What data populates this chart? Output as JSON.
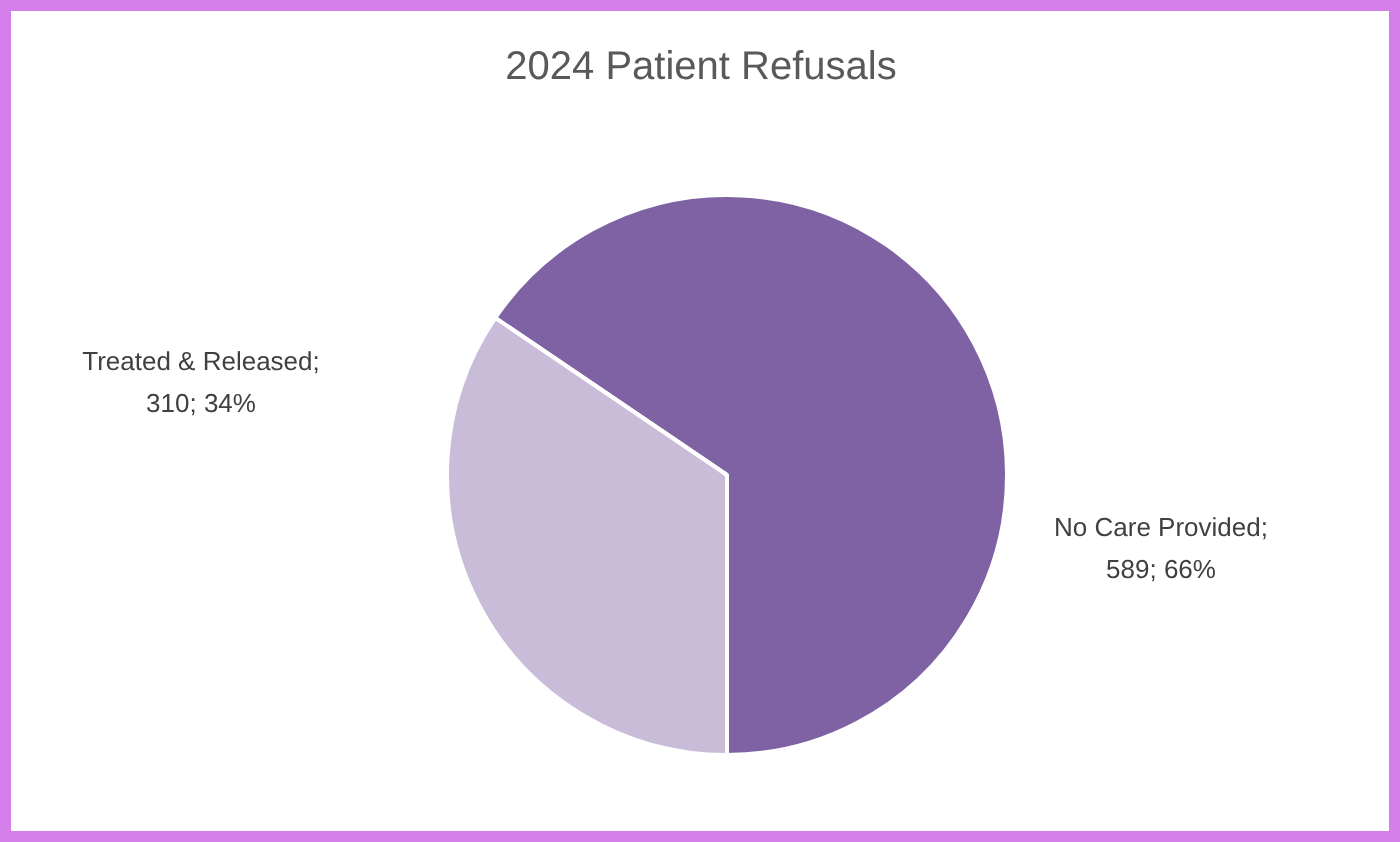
{
  "chart_data": {
    "type": "pie",
    "title": "2024 Patient Refusals",
    "categories": [
      "No Care Provided",
      "Treated & Released"
    ],
    "values": [
      589,
      310
    ],
    "value_labels": [
      ";\n589; 66%",
      ";\n310; 34%"
    ],
    "colors": [
      "#7e62a3",
      "#c9bcd9"
    ]
  }
}
